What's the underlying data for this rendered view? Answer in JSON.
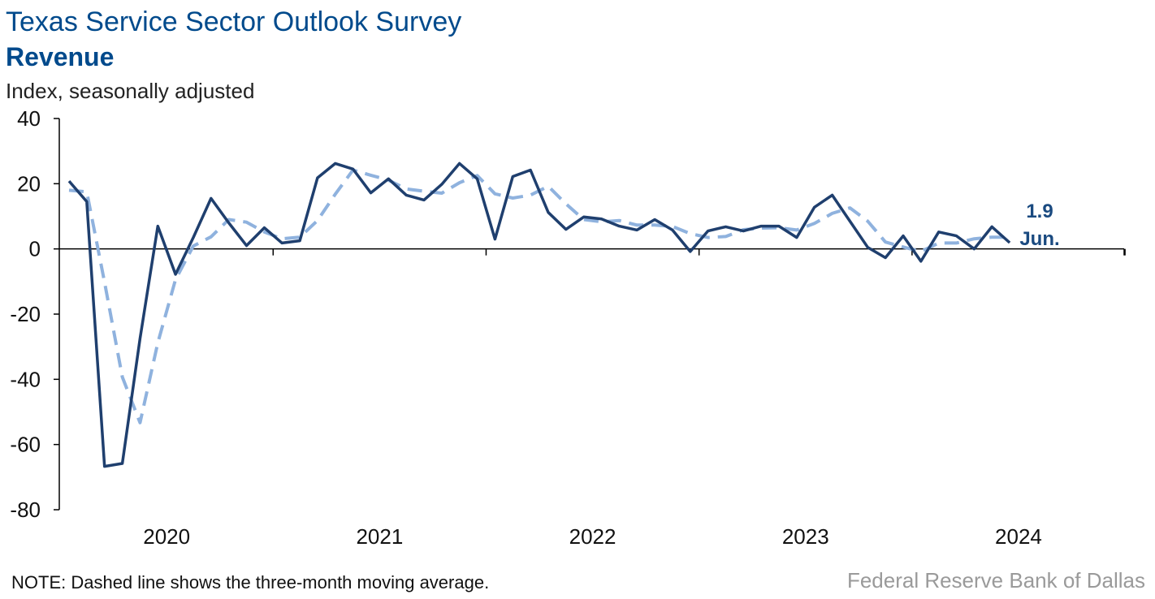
{
  "header": {
    "title": "Texas Service Sector Outlook Survey",
    "subtitle": "Revenue",
    "ylabel": "Index, seasonally adjusted"
  },
  "footer": {
    "note": "NOTE: Dashed line shows the three-month moving average.",
    "source": "Federal Reserve Bank of Dallas"
  },
  "annotation": {
    "value": "1.9",
    "label": "Jun."
  },
  "colors": {
    "series": "#1f3f6e",
    "moving_average": "#8fb2de",
    "annotation": "#1a4a80"
  },
  "chart_data": {
    "type": "line",
    "title": "Texas Service Sector Outlook Survey",
    "subtitle": "Revenue",
    "ylabel": "Index, seasonally adjusted",
    "xlabel": "",
    "ylim": [
      -80,
      40
    ],
    "yticks": [
      40,
      20,
      0,
      -20,
      -40,
      -60,
      -80
    ],
    "x_start": "2020-01",
    "x_end": "2024-06",
    "year_ticks": [
      "2020",
      "2021",
      "2022",
      "2023",
      "2024"
    ],
    "grid": false,
    "series": [
      {
        "style": "solid",
        "values": [
          20.8,
          14.5,
          -66.7,
          -65.8,
          -27.5,
          7.0,
          -7.8,
          3.5,
          15.5,
          8.0,
          1.0,
          6.5,
          1.8,
          2.5,
          21.8,
          26.2,
          24.5,
          17.2,
          21.5,
          16.5,
          15.0,
          19.8,
          26.2,
          21.5,
          3.0,
          22.2,
          24.2,
          11.2,
          6.0,
          9.8,
          9.2,
          7.0,
          5.8,
          9.0,
          5.8,
          -0.8,
          5.5,
          6.8,
          5.5,
          7.0,
          7.0,
          3.5,
          12.8,
          16.5,
          8.5,
          0.5,
          -2.7,
          4.0,
          -3.8,
          5.2,
          4.0,
          0.0,
          6.8,
          1.9
        ]
      },
      {
        "style": "dashed",
        "values": [
          18.0,
          17.5,
          -10.2,
          -39.3,
          -53.3,
          -28.8,
          -9.4,
          0.9,
          3.7,
          9.0,
          8.2,
          5.2,
          3.1,
          3.6,
          8.7,
          16.8,
          24.2,
          22.6,
          21.1,
          18.4,
          17.7,
          17.1,
          20.3,
          22.5,
          16.9,
          15.6,
          16.5,
          19.2,
          13.8,
          9.0,
          8.3,
          8.7,
          7.3,
          7.3,
          6.9,
          4.7,
          3.5,
          3.8,
          5.9,
          6.4,
          6.5,
          5.8,
          7.8,
          10.9,
          12.6,
          8.5,
          2.1,
          0.6,
          -0.8,
          1.8,
          1.8,
          3.1,
          3.6,
          3.6
        ]
      }
    ]
  }
}
